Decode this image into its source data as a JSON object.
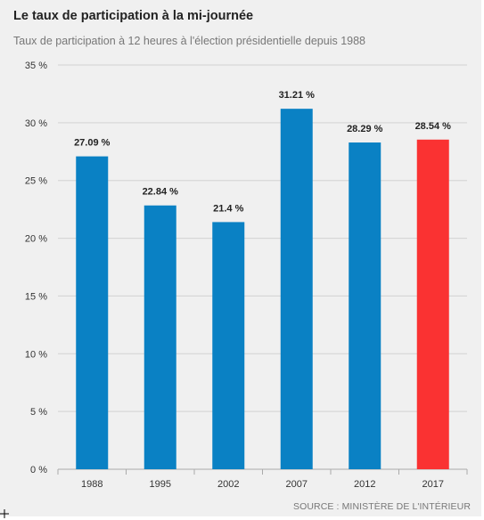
{
  "header": {
    "title": "Le taux de participation à la mi-journée",
    "subtitle": "Taux de participation à 12 heures à l'élection présidentielle depuis 1988"
  },
  "source": "SOURCE : MINISTÈRE DE L'INTÉRIEUR",
  "colors": {
    "bar": "#0a81c4",
    "highlight": "#fa3232",
    "grid": "#d2d2d2",
    "background": "#f0f0f0"
  },
  "chart_data": {
    "type": "bar",
    "title": "Le taux de participation à la mi-journée",
    "subtitle": "Taux de participation à 12 heures à l'élection présidentielle depuis 1988",
    "categories": [
      "1988",
      "1995",
      "2002",
      "2007",
      "2012",
      "2017"
    ],
    "values": [
      27.09,
      22.84,
      21.4,
      31.21,
      28.29,
      28.54
    ],
    "value_labels": [
      "27.09 %",
      "22.84 %",
      "21.4 %",
      "31.21 %",
      "28.29 %",
      "28.54 %"
    ],
    "highlight_category": "2017",
    "ylim": [
      0,
      35
    ],
    "yticks": [
      0,
      5,
      10,
      15,
      20,
      25,
      30,
      35
    ],
    "ytick_labels": [
      "0 %",
      "5 %",
      "10 %",
      "15 %",
      "20 %",
      "25 %",
      "30 %",
      "35 %"
    ],
    "xlabel": "",
    "ylabel": "",
    "grid": true
  }
}
